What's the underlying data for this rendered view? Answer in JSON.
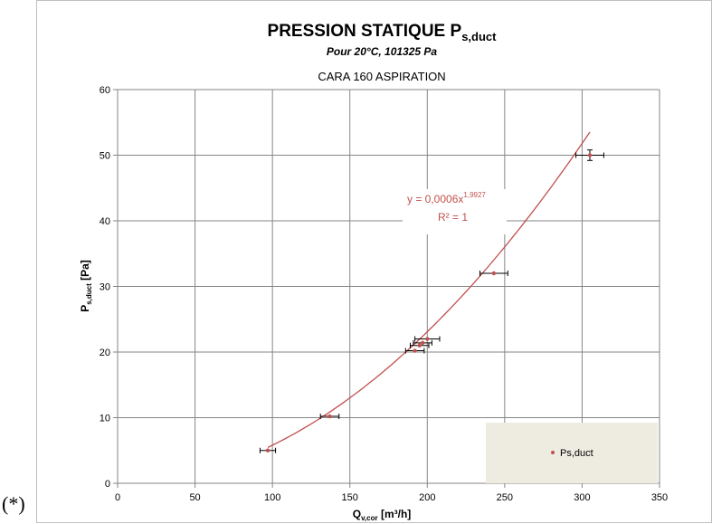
{
  "prefix_label": "(*)",
  "chart_data": {
    "type": "scatter",
    "title": "PRESSION STATIQUE P",
    "title_subscript": "s,duct",
    "subtitle": "Pour 20°C, 101325 Pa",
    "caption": "CARA 160 ASPIRATION",
    "xlabel": "Q",
    "xlabel_subscript": "v,cor",
    "xlabel_unit": " [m³/h]",
    "ylabel": "P",
    "ylabel_subscript": "s,duct",
    "ylabel_unit": " [Pa]",
    "xlim": [
      0,
      350
    ],
    "ylim": [
      0,
      60
    ],
    "xticks": [
      0,
      50,
      100,
      150,
      200,
      250,
      300,
      350
    ],
    "yticks": [
      0,
      10,
      20,
      30,
      40,
      50,
      60
    ],
    "grid": true,
    "series": [
      {
        "name": "Ps,duct",
        "color": "#c0504d",
        "points": [
          {
            "x": 97,
            "y": 5,
            "xerr": 5
          },
          {
            "x": 137,
            "y": 10.2,
            "xerr": 6
          },
          {
            "x": 192,
            "y": 20.2,
            "xerr": 6
          },
          {
            "x": 195,
            "y": 21,
            "xerr": 6
          },
          {
            "x": 197,
            "y": 21.4,
            "xerr": 6
          },
          {
            "x": 200,
            "y": 22,
            "xerr": 8
          },
          {
            "x": 243,
            "y": 32,
            "xerr": 9
          },
          {
            "x": 305,
            "y": 50,
            "xerr": 9,
            "yerr": 0.8
          }
        ]
      }
    ],
    "trendline": {
      "equation_prefix": "y = 0,0006x",
      "equation_exponent": "1,9927",
      "r_squared": "R² = 1",
      "coefficient": 0.0006,
      "exponent": 1.9927,
      "x_range": [
        97,
        305
      ],
      "color": "#c0504d"
    },
    "legend": {
      "position": "bottom-right",
      "entries": [
        "Ps,duct"
      ]
    }
  }
}
